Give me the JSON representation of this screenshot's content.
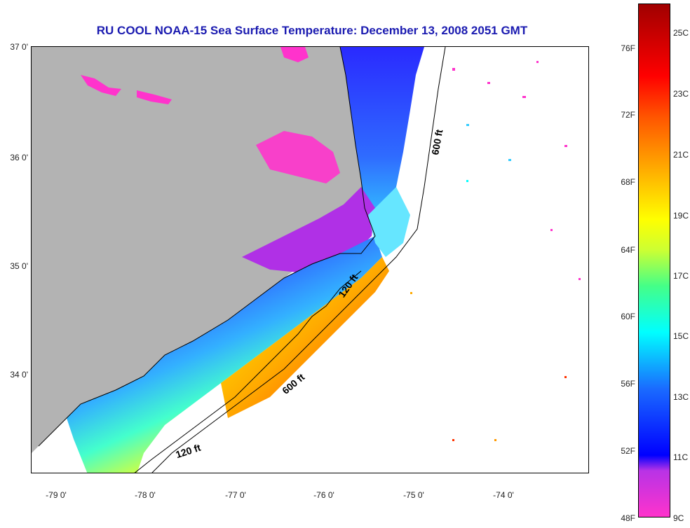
{
  "title": "RU COOL  NOAA-15  Sea Surface Temperature:  December 13, 2008 2051 GMT",
  "latitude_labels": [
    "37 0'",
    "36 0'",
    "35 0'",
    "34 0'"
  ],
  "longitude_labels": [
    "-79 0'",
    "-78 0'",
    "-77 0'",
    "-76 0'",
    "-75 0'",
    "-74 0'"
  ],
  "contour_labels": {
    "depth_600_north": "600 ft",
    "depth_120_mid": "120 ft",
    "depth_600_south": "600 ft",
    "depth_120_south": "120 ft"
  },
  "colorbar": {
    "fahrenheit_labels": [
      "76F",
      "72F",
      "68F",
      "64F",
      "60F",
      "56F",
      "52F",
      "48F"
    ],
    "celsius_labels": [
      "25C",
      "23C",
      "21C",
      "19C",
      "17C",
      "15C",
      "13C",
      "11C",
      "9C"
    ]
  },
  "colors": {
    "land": "#b3b3b3",
    "title": "#1a1ab0",
    "cold": "#ff33cc",
    "warm": "#ff2200"
  }
}
